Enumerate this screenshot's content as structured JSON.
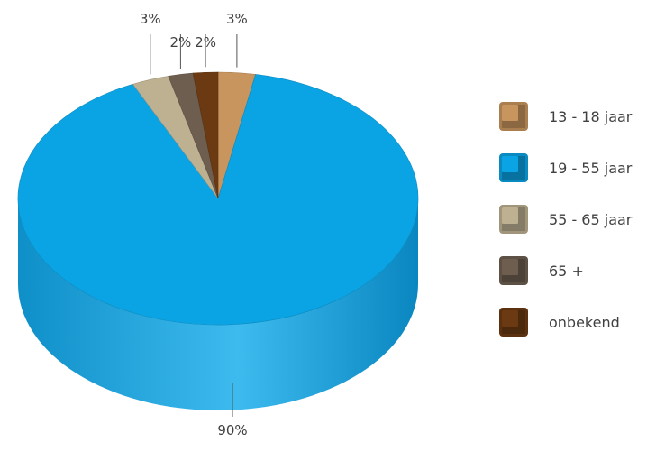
{
  "chart_data": {
    "type": "pie",
    "style": "3d",
    "legend_position": "right",
    "slices": [
      {
        "label": "13 - 18 jaar",
        "value": 3,
        "value_label": "3%",
        "color": "#C8955E"
      },
      {
        "label": "19 - 55 jaar",
        "value": 90,
        "value_label": "90%",
        "color": "#0AA3E3"
      },
      {
        "label": "55 - 65  jaar",
        "value": 3,
        "value_label": "3%",
        "color": "#BDB191"
      },
      {
        "label": "65 +",
        "value": 2,
        "value_label": "2%",
        "color": "#6D5E50"
      },
      {
        "label": "onbekend",
        "value": 2,
        "value_label": "2%",
        "color": "#6B3A12"
      }
    ]
  }
}
